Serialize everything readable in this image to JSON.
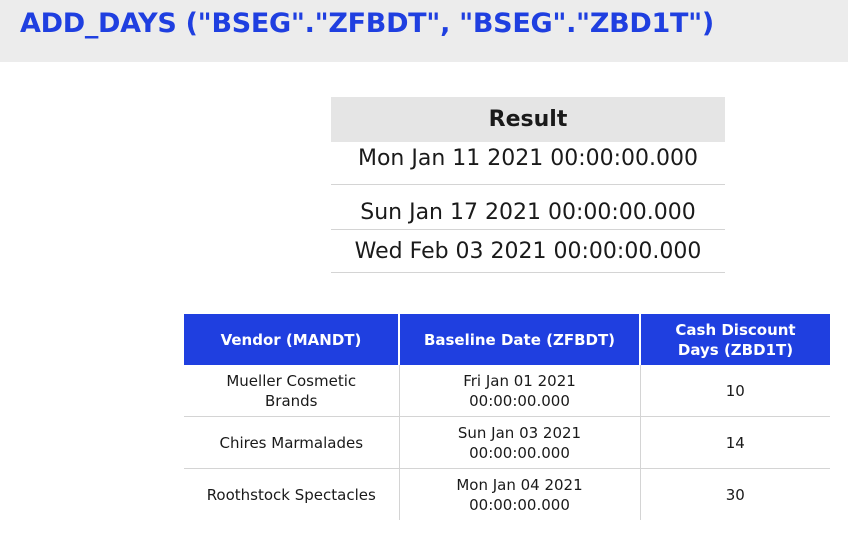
{
  "title": "ADD_DAYS (\"BSEG\".\"ZFBDT\", \"BSEG\".\"ZBD1T\")",
  "result": {
    "header": "Result",
    "rows": [
      "Mon Jan 11 2021 00:00:00.000",
      "Sun Jan 17 2021 00:00:00.000",
      "Wed Feb 03 2021 00:00:00.000"
    ]
  },
  "vendor_table": {
    "headers": {
      "vendor": "Vendor (MANDT)",
      "date": "Baseline Date (ZFBDT)",
      "days_line1": "Cash Discount",
      "days_line2": "Days (ZBD1T)"
    },
    "rows": [
      {
        "vendor_line1": "Mueller Cosmetic",
        "vendor_line2": "Brands",
        "date_line1": "Fri Jan 01 2021",
        "date_line2": "00:00:00.000",
        "days": "10"
      },
      {
        "vendor_line1": "Chires Marmalades",
        "vendor_line2": "",
        "date_line1": "Sun Jan 03 2021",
        "date_line2": "00:00:00.000",
        "days": "14"
      },
      {
        "vendor_line1": "Roothstock Spectacles",
        "vendor_line2": "",
        "date_line1": "Mon Jan 04 2021",
        "date_line2": "00:00:00.000",
        "days": "30"
      }
    ]
  },
  "colors": {
    "accent": "#1f3fe0",
    "header_band": "#ececec",
    "result_header": "#e5e5e5"
  }
}
